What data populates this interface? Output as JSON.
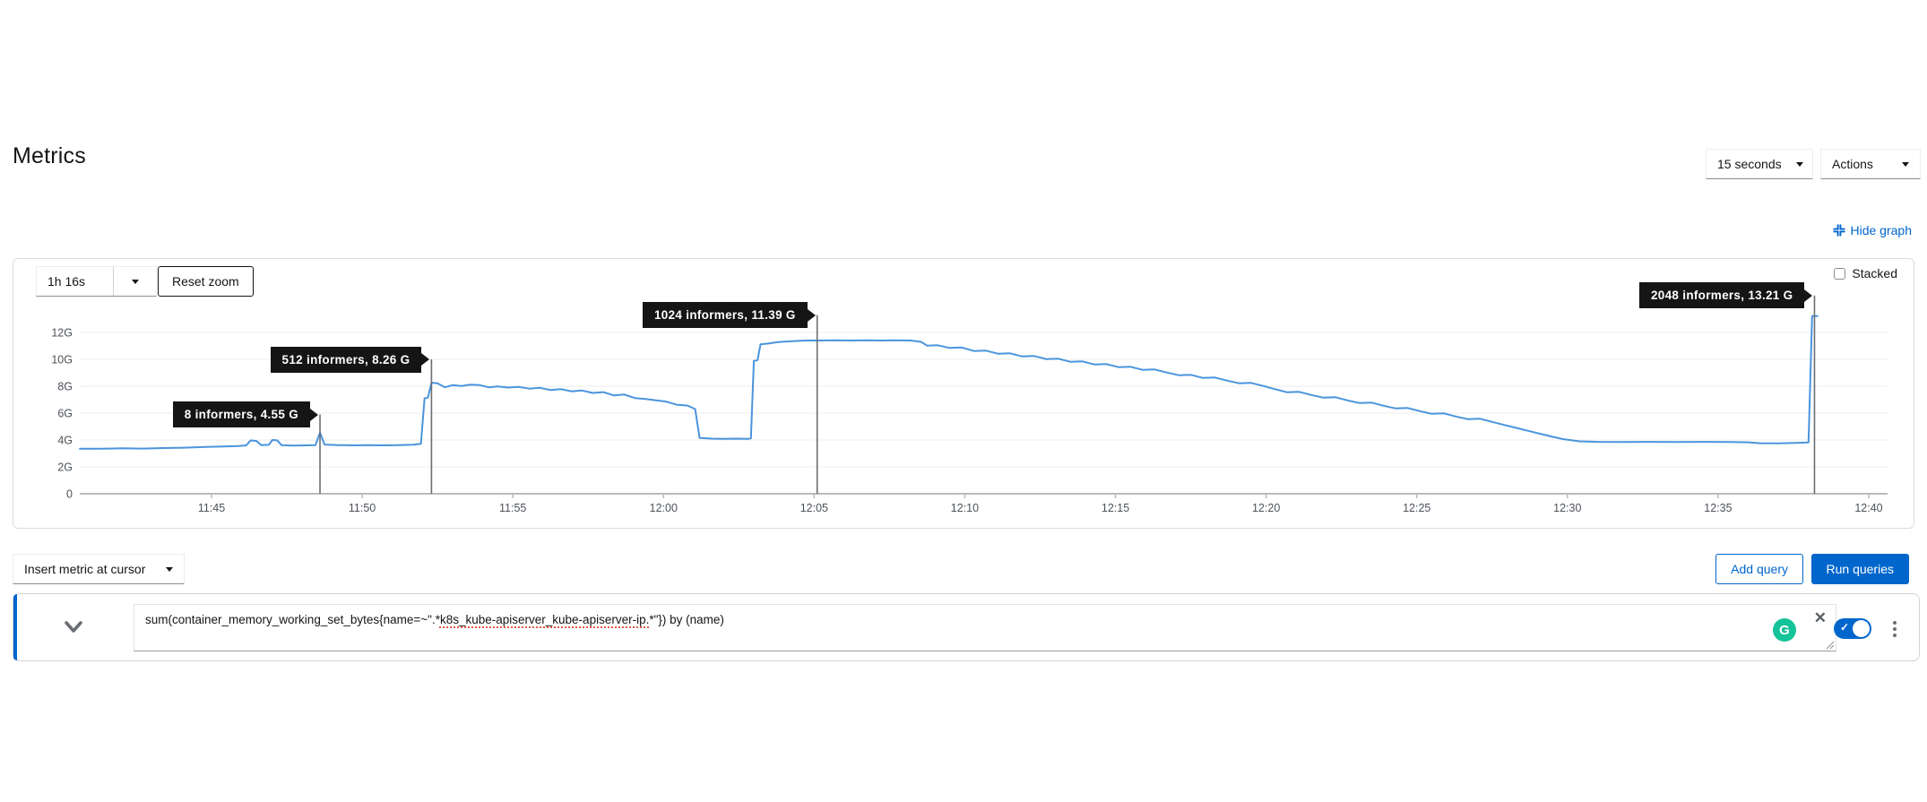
{
  "page": {
    "title": "Metrics"
  },
  "toolbar": {
    "refresh_interval": "15 seconds",
    "actions_label": "Actions",
    "hide_graph_label": "Hide graph"
  },
  "graph_controls": {
    "duration": "1h 16s",
    "reset_zoom_label": "Reset zoom",
    "stacked_label": "Stacked",
    "stacked_checked": false
  },
  "query_toolbar": {
    "insert_metric_label": "Insert metric at cursor",
    "add_query_label": "Add query",
    "run_queries_label": "Run queries"
  },
  "query_row": {
    "expression_before": "sum(container_memory_working_set_bytes{name=~\".*",
    "expression_misspelled": "k8s_kube-apiserver_kube-apiserver-ip.",
    "expression_after": "*\"}) by (name)",
    "enabled": true
  },
  "icons": {
    "close": "✕",
    "check": "✓",
    "grammarly_letter": "G"
  },
  "colors": {
    "accent_blue": "#0066cc",
    "series_line": "#4a94dd",
    "annotation_bg": "#151515",
    "dropline": "#6a6e73",
    "gridline": "#ececec",
    "axis": "#b8bbbe",
    "tick_text": "#4d5258",
    "grammarly_green": "#15c39a"
  },
  "chart_data": {
    "type": "line",
    "title": "",
    "unit": "G",
    "grid": true,
    "legend": "none",
    "y_ticks": [
      {
        "label": "12G",
        "value": 12
      },
      {
        "label": "10G",
        "value": 10
      },
      {
        "label": "8G",
        "value": 8
      },
      {
        "label": "6G",
        "value": 6
      },
      {
        "label": "4G",
        "value": 4
      },
      {
        "label": "2G",
        "value": 2
      },
      {
        "label": "0",
        "value": 0
      }
    ],
    "x_ticks": [
      {
        "label": "11:45",
        "minute": 45
      },
      {
        "label": "11:50",
        "minute": 50
      },
      {
        "label": "11:55",
        "minute": 55
      },
      {
        "label": "12:00",
        "minute": 60
      },
      {
        "label": "12:05",
        "minute": 65
      },
      {
        "label": "12:10",
        "minute": 70
      },
      {
        "label": "12:15",
        "minute": 75
      },
      {
        "label": "12:20",
        "minute": 80
      },
      {
        "label": "12:25",
        "minute": 85
      },
      {
        "label": "12:30",
        "minute": 90
      },
      {
        "label": "12:35",
        "minute": 95
      },
      {
        "label": "12:40",
        "minute": 100
      }
    ],
    "x_range_minutes_after_11": [
      40.63,
      100.6
    ],
    "y_range": [
      0,
      14.8
    ],
    "annotations": [
      {
        "label": "8 informers, 4.55 G",
        "time_min": 48.6,
        "arrow_g": 5.9
      },
      {
        "label": "512 informers, 8.26 G",
        "time_min": 52.3,
        "arrow_g": 10.0
      },
      {
        "label": "1024 informers, 11.39 G",
        "time_min": 65.1,
        "arrow_g": 13.3
      },
      {
        "label": "2048 informers, 13.21 G",
        "time_min": 98.2,
        "arrow_g": 14.75
      }
    ],
    "series": [
      {
        "color": "#4a94dd",
        "points": [
          [
            40.63,
            3.35
          ],
          [
            41.3,
            3.35
          ],
          [
            42.0,
            3.38
          ],
          [
            42.7,
            3.36
          ],
          [
            43.4,
            3.4
          ],
          [
            44.1,
            3.43
          ],
          [
            44.8,
            3.48
          ],
          [
            45.4,
            3.52
          ],
          [
            45.9,
            3.55
          ],
          [
            46.15,
            3.6
          ],
          [
            46.3,
            3.97
          ],
          [
            46.5,
            3.92
          ],
          [
            46.65,
            3.62
          ],
          [
            46.9,
            3.64
          ],
          [
            47.02,
            4.0
          ],
          [
            47.18,
            3.97
          ],
          [
            47.32,
            3.62
          ],
          [
            47.7,
            3.58
          ],
          [
            48.1,
            3.6
          ],
          [
            48.45,
            3.62
          ],
          [
            48.6,
            4.55
          ],
          [
            48.75,
            3.66
          ],
          [
            49.2,
            3.62
          ],
          [
            49.7,
            3.6
          ],
          [
            50.2,
            3.62
          ],
          [
            50.7,
            3.6
          ],
          [
            51.2,
            3.62
          ],
          [
            51.7,
            3.65
          ],
          [
            51.95,
            3.72
          ],
          [
            52.07,
            7.1
          ],
          [
            52.18,
            7.15
          ],
          [
            52.3,
            8.26
          ],
          [
            52.5,
            8.22
          ],
          [
            52.75,
            7.92
          ],
          [
            53.0,
            8.08
          ],
          [
            53.3,
            8.02
          ],
          [
            53.6,
            8.12
          ],
          [
            53.9,
            8.08
          ],
          [
            54.2,
            7.92
          ],
          [
            54.5,
            7.98
          ],
          [
            54.85,
            7.9
          ],
          [
            55.2,
            7.95
          ],
          [
            55.55,
            7.82
          ],
          [
            55.9,
            7.88
          ],
          [
            56.25,
            7.72
          ],
          [
            56.6,
            7.78
          ],
          [
            56.95,
            7.62
          ],
          [
            57.3,
            7.68
          ],
          [
            57.65,
            7.5
          ],
          [
            58.0,
            7.56
          ],
          [
            58.35,
            7.32
          ],
          [
            58.7,
            7.38
          ],
          [
            59.05,
            7.12
          ],
          [
            59.4,
            7.05
          ],
          [
            59.75,
            6.95
          ],
          [
            60.1,
            6.85
          ],
          [
            60.45,
            6.62
          ],
          [
            60.8,
            6.56
          ],
          [
            61.05,
            6.3
          ],
          [
            61.2,
            4.15
          ],
          [
            61.6,
            4.1
          ],
          [
            62.0,
            4.08
          ],
          [
            62.4,
            4.1
          ],
          [
            62.8,
            4.08
          ],
          [
            62.9,
            4.12
          ],
          [
            63.0,
            9.88
          ],
          [
            63.12,
            9.94
          ],
          [
            63.22,
            11.12
          ],
          [
            63.5,
            11.18
          ],
          [
            63.8,
            11.28
          ],
          [
            64.2,
            11.34
          ],
          [
            64.7,
            11.4
          ],
          [
            65.2,
            11.4
          ],
          [
            65.7,
            11.42
          ],
          [
            66.2,
            11.4
          ],
          [
            66.7,
            11.42
          ],
          [
            67.2,
            11.4
          ],
          [
            67.7,
            11.42
          ],
          [
            68.2,
            11.4
          ],
          [
            68.55,
            11.3
          ],
          [
            68.75,
            11.02
          ],
          [
            69.1,
            11.05
          ],
          [
            69.5,
            10.85
          ],
          [
            69.9,
            10.88
          ],
          [
            70.3,
            10.62
          ],
          [
            70.7,
            10.65
          ],
          [
            71.1,
            10.42
          ],
          [
            71.5,
            10.45
          ],
          [
            71.9,
            10.22
          ],
          [
            72.3,
            10.25
          ],
          [
            72.7,
            10.02
          ],
          [
            73.1,
            10.05
          ],
          [
            73.5,
            9.82
          ],
          [
            73.9,
            9.85
          ],
          [
            74.3,
            9.62
          ],
          [
            74.7,
            9.65
          ],
          [
            75.1,
            9.42
          ],
          [
            75.5,
            9.45
          ],
          [
            75.9,
            9.22
          ],
          [
            76.3,
            9.25
          ],
          [
            76.7,
            9.02
          ],
          [
            77.1,
            8.82
          ],
          [
            77.5,
            8.85
          ],
          [
            77.9,
            8.62
          ],
          [
            78.3,
            8.65
          ],
          [
            78.7,
            8.42
          ],
          [
            79.1,
            8.22
          ],
          [
            79.5,
            8.25
          ],
          [
            79.9,
            8.02
          ],
          [
            80.3,
            7.78
          ],
          [
            80.7,
            7.55
          ],
          [
            81.1,
            7.58
          ],
          [
            81.5,
            7.35
          ],
          [
            81.9,
            7.15
          ],
          [
            82.3,
            7.18
          ],
          [
            82.7,
            6.95
          ],
          [
            83.1,
            6.75
          ],
          [
            83.5,
            6.78
          ],
          [
            83.9,
            6.55
          ],
          [
            84.3,
            6.35
          ],
          [
            84.7,
            6.38
          ],
          [
            85.1,
            6.15
          ],
          [
            85.5,
            5.95
          ],
          [
            85.9,
            5.98
          ],
          [
            86.3,
            5.75
          ],
          [
            86.7,
            5.55
          ],
          [
            87.1,
            5.58
          ],
          [
            87.5,
            5.35
          ],
          [
            87.9,
            5.12
          ],
          [
            88.3,
            4.9
          ],
          [
            88.7,
            4.68
          ],
          [
            89.1,
            4.46
          ],
          [
            89.5,
            4.24
          ],
          [
            89.9,
            4.05
          ],
          [
            90.4,
            3.9
          ],
          [
            91.0,
            3.86
          ],
          [
            91.8,
            3.85
          ],
          [
            92.7,
            3.86
          ],
          [
            93.6,
            3.85
          ],
          [
            94.5,
            3.86
          ],
          [
            95.4,
            3.85
          ],
          [
            96.0,
            3.83
          ],
          [
            96.4,
            3.76
          ],
          [
            97.0,
            3.75
          ],
          [
            97.6,
            3.78
          ],
          [
            98.0,
            3.82
          ],
          [
            98.12,
            13.21
          ],
          [
            98.3,
            13.21
          ]
        ]
      }
    ]
  }
}
